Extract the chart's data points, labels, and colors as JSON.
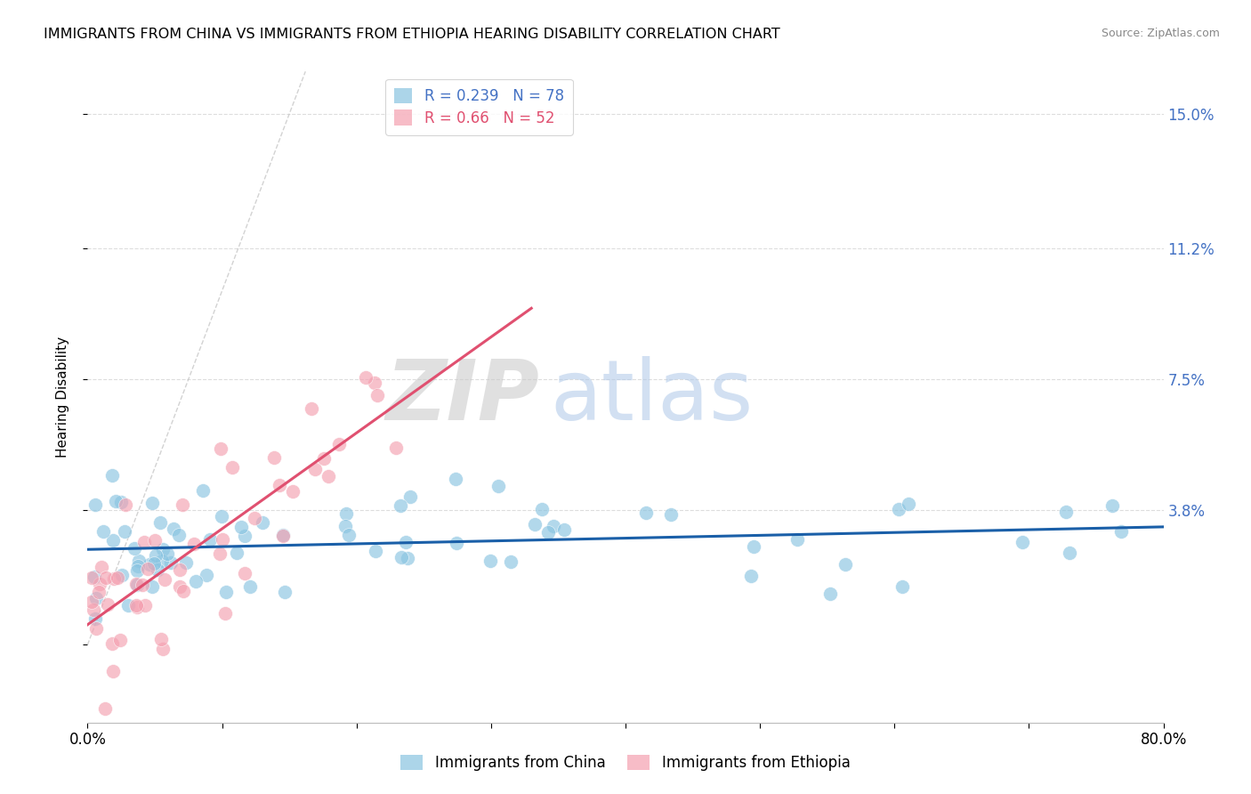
{
  "title": "IMMIGRANTS FROM CHINA VS IMMIGRANTS FROM ETHIOPIA HEARING DISABILITY CORRELATION CHART",
  "source": "Source: ZipAtlas.com",
  "ylabel": "Hearing Disability",
  "xlim": [
    0.0,
    0.8
  ],
  "ylim": [
    -0.022,
    0.162
  ],
  "china_color": "#89c4e1",
  "ethiopia_color": "#f4a0b0",
  "china_line_color": "#1a5fa8",
  "ethiopia_line_color": "#e05070",
  "china_R": 0.239,
  "china_N": 78,
  "ethiopia_R": 0.66,
  "ethiopia_N": 52,
  "legend_label_china": "Immigrants from China",
  "legend_label_ethiopia": "Immigrants from Ethiopia",
  "watermark_zip": "ZIP",
  "watermark_atlas": "atlas",
  "ytick_vals": [
    0.0,
    0.038,
    0.075,
    0.112,
    0.15
  ],
  "ytick_labels": [
    "",
    "3.8%",
    "7.5%",
    "11.2%",
    "15.0%"
  ],
  "xtick_vals": [
    0.0,
    0.1,
    0.2,
    0.3,
    0.4,
    0.5,
    0.6,
    0.7,
    0.8
  ],
  "grid_color": "#dddddd",
  "ref_line_color": "#c0c0c0",
  "title_fontsize": 11.5,
  "source_fontsize": 9,
  "tick_label_color": "#4472c4"
}
